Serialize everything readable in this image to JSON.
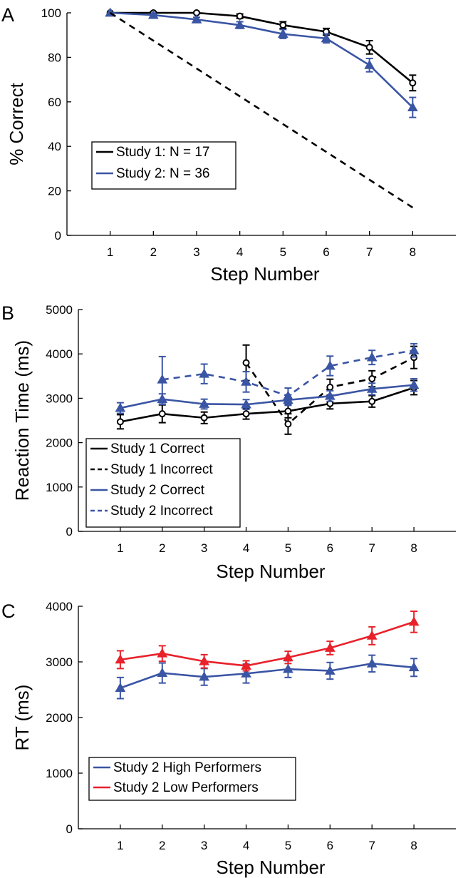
{
  "colors": {
    "black": "#000000",
    "blue": "#3a55a4",
    "red": "#e8212a"
  },
  "chart_data": [
    {
      "panel_label": "A",
      "type": "line",
      "xlabel": "Step Number",
      "ylabel": "% Correct",
      "xlim": [
        0,
        9
      ],
      "ylim": [
        0,
        100
      ],
      "xticks": [
        1,
        2,
        3,
        4,
        5,
        6,
        7,
        8
      ],
      "yticks": [
        0,
        20,
        40,
        60,
        80,
        100
      ],
      "legend_position": "center-left",
      "series": [
        {
          "name": "Study 1: N = 17",
          "color": "#000000",
          "dash": false,
          "marker": "circle",
          "legend": true,
          "x": [
            1,
            2,
            3,
            4,
            5,
            6,
            7,
            8
          ],
          "values": [
            100,
            100,
            100,
            98.5,
            94.5,
            91.5,
            84.5,
            68.5
          ],
          "err": [
            0,
            0.5,
            0.3,
            1.0,
            1.5,
            1.5,
            3.0,
            3.5
          ]
        },
        {
          "name": "Study 2: N = 36",
          "color": "#3a55a4",
          "dash": false,
          "marker": "triangle",
          "legend": true,
          "x": [
            1,
            2,
            3,
            4,
            5,
            6,
            7,
            8
          ],
          "values": [
            100,
            99,
            97,
            94.5,
            90.5,
            88.5,
            76.5,
            57.5
          ],
          "err": [
            0,
            0.5,
            1.0,
            1.5,
            2.0,
            2.0,
            3.0,
            4.5
          ]
        },
        {
          "color": "#000000",
          "dash": true,
          "marker": "none",
          "legend": false,
          "x": [
            1,
            8
          ],
          "values": [
            100,
            12.5
          ],
          "err": [
            0,
            0
          ]
        }
      ]
    },
    {
      "panel_label": "B",
      "type": "line",
      "xlabel": "Step Number",
      "ylabel": "Reaction Time (ms)",
      "xlim": [
        0,
        9
      ],
      "ylim": [
        0,
        5000
      ],
      "xticks": [
        1,
        2,
        3,
        4,
        5,
        6,
        7,
        8
      ],
      "yticks": [
        0,
        1000,
        2000,
        3000,
        4000,
        5000
      ],
      "legend_position": "lower-left",
      "series": [
        {
          "name": "Study 1 Correct",
          "color": "#000000",
          "dash": false,
          "marker": "circle",
          "legend": true,
          "x": [
            1,
            2,
            3,
            4,
            5,
            6,
            7,
            8
          ],
          "values": [
            2470,
            2650,
            2560,
            2650,
            2710,
            2880,
            2930,
            3240
          ],
          "err": [
            160,
            200,
            130,
            120,
            150,
            120,
            130,
            160
          ]
        },
        {
          "name": "Study 1 Incorrect",
          "color": "#000000",
          "dash": true,
          "marker": "circle",
          "legend": true,
          "x": [
            4,
            5,
            6,
            7,
            8
          ],
          "values": [
            3800,
            2420,
            3250,
            3440,
            3920
          ],
          "err": [
            400,
            230,
            180,
            180,
            250
          ]
        },
        {
          "name": "Study 2 Correct",
          "color": "#3a55a4",
          "dash": false,
          "marker": "triangle",
          "legend": true,
          "x": [
            1,
            2,
            3,
            4,
            5,
            6,
            7,
            8
          ],
          "values": [
            2780,
            2980,
            2870,
            2860,
            2960,
            3050,
            3210,
            3300
          ],
          "err": [
            120,
            120,
            110,
            110,
            120,
            120,
            130,
            140
          ]
        },
        {
          "name": "Study 2 Incorrect",
          "color": "#3a55a4",
          "dash": true,
          "marker": "triangle",
          "legend": true,
          "x": [
            2,
            3,
            4,
            5,
            6,
            7,
            8
          ],
          "values": [
            3420,
            3550,
            3370,
            3050,
            3730,
            3920,
            4080
          ],
          "err": [
            520,
            220,
            230,
            180,
            220,
            160,
            150
          ]
        }
      ]
    },
    {
      "panel_label": "C",
      "type": "line",
      "xlabel": "Step Number",
      "ylabel": "RT (ms)",
      "xlim": [
        0,
        9
      ],
      "ylim": [
        0,
        4000
      ],
      "xticks": [
        1,
        2,
        3,
        4,
        5,
        6,
        7,
        8
      ],
      "yticks": [
        0,
        1000,
        2000,
        3000,
        4000
      ],
      "legend_position": "lower-left",
      "series": [
        {
          "name": "Study 2 High Performers",
          "color": "#3a55a4",
          "dash": false,
          "marker": "triangle",
          "legend": true,
          "x": [
            1,
            2,
            3,
            4,
            5,
            6,
            7,
            8
          ],
          "values": [
            2530,
            2800,
            2730,
            2790,
            2870,
            2840,
            2970,
            2900
          ],
          "err": [
            190,
            180,
            150,
            170,
            150,
            150,
            150,
            160
          ]
        },
        {
          "name": "Study 2 Low Performers",
          "color": "#e8212a",
          "dash": false,
          "marker": "triangle",
          "legend": true,
          "x": [
            1,
            2,
            3,
            4,
            5,
            6,
            7,
            8
          ],
          "values": [
            3040,
            3150,
            3010,
            2930,
            3080,
            3250,
            3470,
            3720
          ],
          "err": [
            160,
            140,
            120,
            90,
            110,
            120,
            160,
            190
          ]
        }
      ]
    }
  ]
}
